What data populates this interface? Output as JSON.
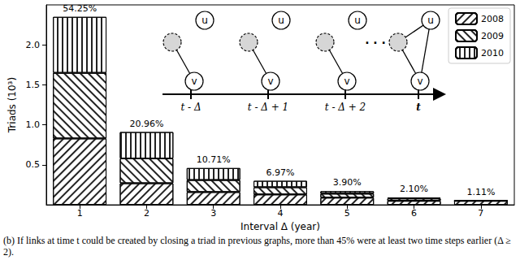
{
  "chart_data": {
    "type": "bar",
    "stacked": true,
    "categories": [
      "1",
      "2",
      "3",
      "4",
      "5",
      "6",
      "7"
    ],
    "series": [
      {
        "name": "2008",
        "color": "#ffffff",
        "values": [
          0.83,
          0.27,
          0.16,
          0.13,
          0.09,
          0.05,
          0.05
        ]
      },
      {
        "name": "2009",
        "color": "#ffffff",
        "values": [
          0.82,
          0.31,
          0.15,
          0.09,
          0.05,
          0.03,
          0
        ]
      },
      {
        "name": "2010",
        "color": "#ffffff",
        "values": [
          0.7,
          0.33,
          0.15,
          0.08,
          0.03,
          0.01,
          0
        ]
      }
    ],
    "xlabel": "Interval Δ (year)",
    "ylabel": "Triads (10³)",
    "ylim": [
      0,
      2.5
    ],
    "yticks": [
      0.5,
      {
        "value": 1,
        "label": "1.0"
      },
      1.5,
      {
        "value": 2,
        "label": "2.0"
      }
    ],
    "grid": false,
    "legend": "upper right",
    "annotations": {
      "bar_labels": [
        "54.25%",
        "20.96%",
        "10.71%",
        "6.97%",
        "3.90%",
        "2.10%",
        "1.11%"
      ],
      "diagram_nodes": [
        "u",
        "v"
      ],
      "timeline": [
        "t - Δ",
        "t - Δ + 1",
        "t - Δ + 2",
        "· · ·",
        "t"
      ]
    },
    "caption": "(b) If links at time t could be created by closing a triad in previous graphs, more than 45% were at least two time steps earlier (Δ ≥ 2)."
  }
}
